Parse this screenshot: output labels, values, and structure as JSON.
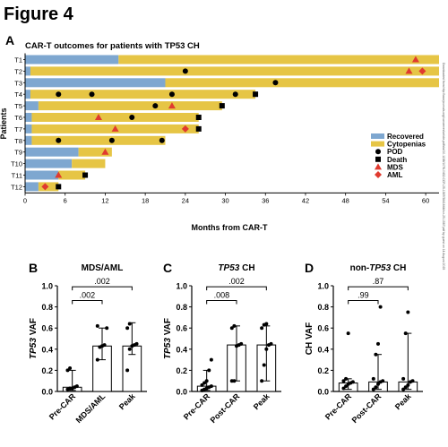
{
  "figure_title": "Figure 4",
  "side_note": "Downloaded from http://aacrjournals.org/cancerres/article-pdf/doi/10.1158/1078-0432.CCR-25-1587/3841644/ccr-25-1587.pdf by guest on 14 August 2025",
  "panel_a": {
    "letter": "A",
    "title": "CAR-T outcomes for patients with TP53 CH",
    "xlabel": "Months from CAR-T",
    "ylabel": "Patients",
    "legend": {
      "recovered": "Recovered",
      "cytopenias": "Cytopenias",
      "pod": "POD",
      "death": "Death",
      "mds": "MDS",
      "aml": "AML"
    },
    "colors": {
      "recovered": "#7ea7d0",
      "cytopenias": "#e6c545",
      "event": "#e03a2f",
      "dark": "#000000"
    }
  },
  "panel_b": {
    "letter": "B",
    "title": "MDS/AML",
    "title_italic": "",
    "ylabel_italic": "TP53",
    "ylabel_rest": " VAF"
  },
  "panel_c": {
    "letter": "C",
    "title": " CH",
    "title_italic": "TP53",
    "ylabel_italic": "TP53",
    "ylabel_rest": " VAF"
  },
  "panel_d": {
    "letter": "D",
    "title": " CH",
    "title_prefix": "non-",
    "title_italic": "TP53",
    "ylabel_italic": "",
    "ylabel_rest": "CH VAF"
  },
  "chart_data": [
    {
      "type": "bar",
      "orientation": "horizontal",
      "subtype": "swimmer",
      "title": "CAR-T outcomes for patients with TP53 CH",
      "xlabel": "Months from CAR-T",
      "ylabel": "Patients",
      "xlim": [
        0,
        62
      ],
      "xticks": [
        0,
        6,
        12,
        18,
        24,
        30,
        36,
        42,
        48,
        54,
        60
      ],
      "legend_position": "right",
      "patients": [
        {
          "name": "T1",
          "recovered": [
            0,
            14
          ],
          "cytopenias": [
            14,
            62
          ],
          "events": [
            {
              "type": "mds",
              "x": 58.5
            }
          ]
        },
        {
          "name": "T2",
          "recovered": [
            0,
            0.8
          ],
          "cytopenias": [
            0.8,
            62
          ],
          "events": [
            {
              "type": "pod",
              "x": 24
            },
            {
              "type": "mds",
              "x": 57.5
            },
            {
              "type": "aml",
              "x": 59.5
            }
          ]
        },
        {
          "name": "T3",
          "recovered": [
            0,
            21
          ],
          "cytopenias": [
            21,
            62
          ],
          "events": [
            {
              "type": "pod",
              "x": 37.5
            }
          ]
        },
        {
          "name": "T4",
          "recovered": [
            0,
            0.8
          ],
          "cytopenias": [
            0.8,
            34.5
          ],
          "events": [
            {
              "type": "pod",
              "x": 5
            },
            {
              "type": "pod",
              "x": 10
            },
            {
              "type": "pod",
              "x": 22
            },
            {
              "type": "pod",
              "x": 31.5
            },
            {
              "type": "death",
              "x": 34.5
            }
          ]
        },
        {
          "name": "T5",
          "recovered": [
            0,
            2
          ],
          "cytopenias": [
            2,
            29.5
          ],
          "events": [
            {
              "type": "pod",
              "x": 19.5
            },
            {
              "type": "mds",
              "x": 22
            },
            {
              "type": "death",
              "x": 29.5
            }
          ]
        },
        {
          "name": "T6",
          "recovered": [
            0,
            1
          ],
          "cytopenias": [
            1,
            26
          ],
          "events": [
            {
              "type": "mds",
              "x": 11
            },
            {
              "type": "pod",
              "x": 16
            },
            {
              "type": "death",
              "x": 26
            }
          ]
        },
        {
          "name": "T7",
          "recovered": [
            0,
            1
          ],
          "cytopenias": [
            1,
            26
          ],
          "events": [
            {
              "type": "mds",
              "x": 13.5
            },
            {
              "type": "aml",
              "x": 24
            },
            {
              "type": "death",
              "x": 26
            }
          ]
        },
        {
          "name": "T8",
          "recovered": [
            0,
            1
          ],
          "cytopenias": [
            1,
            21
          ],
          "events": [
            {
              "type": "pod",
              "x": 5
            },
            {
              "type": "pod",
              "x": 13
            },
            {
              "type": "pod",
              "x": 20.5
            }
          ]
        },
        {
          "name": "T9",
          "recovered": [
            0,
            8
          ],
          "cytopenias": [
            8,
            13
          ],
          "events": [
            {
              "type": "mds",
              "x": 12
            }
          ]
        },
        {
          "name": "T10",
          "recovered": [
            0,
            7
          ],
          "cytopenias": [
            7,
            12
          ],
          "events": []
        },
        {
          "name": "T11",
          "recovered": [
            0,
            5
          ],
          "cytopenias": [
            5,
            9
          ],
          "events": [
            {
              "type": "mds",
              "x": 5
            },
            {
              "type": "death",
              "x": 9
            }
          ]
        },
        {
          "name": "T12",
          "recovered": [
            0,
            2
          ],
          "cytopenias": [
            2,
            5
          ],
          "events": [
            {
              "type": "aml",
              "x": 3
            },
            {
              "type": "death",
              "x": 5
            }
          ]
        }
      ]
    },
    {
      "type": "bar",
      "subtype": "bar_with_points",
      "panel": "B",
      "categories": [
        "Pre-CAR",
        "MDS/AML",
        "Peak"
      ],
      "values": [
        0.04,
        0.43,
        0.43
      ],
      "error": [
        [
          0.01,
          0.2
        ],
        [
          0.3,
          0.6
        ],
        [
          0.35,
          0.65
        ]
      ],
      "points": [
        [
          0.02,
          0.03,
          0.03,
          0.04,
          0.05,
          0.2,
          0.22
        ],
        [
          0.3,
          0.42,
          0.43,
          0.44,
          0.6,
          0.62
        ],
        [
          0.2,
          0.4,
          0.43,
          0.44,
          0.45,
          0.6,
          0.64
        ]
      ],
      "ylim": [
        0,
        1.0
      ],
      "yticks": [
        0.0,
        0.2,
        0.4,
        0.6,
        0.8,
        1.0
      ],
      "brackets": [
        {
          "from": 0,
          "to": 1,
          "label": ".002"
        },
        {
          "from": 0,
          "to": 2,
          "label": ".002"
        }
      ]
    },
    {
      "type": "bar",
      "subtype": "bar_with_points",
      "panel": "C",
      "categories": [
        "Pre-CAR",
        "Post-CAR",
        "Peak"
      ],
      "values": [
        0.05,
        0.44,
        0.44
      ],
      "error": [
        [
          0.01,
          0.2
        ],
        [
          0.1,
          0.62
        ],
        [
          0.1,
          0.62
        ]
      ],
      "points": [
        [
          0.01,
          0.02,
          0.03,
          0.04,
          0.05,
          0.06,
          0.08,
          0.1,
          0.2,
          0.3
        ],
        [
          0.1,
          0.1,
          0.43,
          0.44,
          0.45,
          0.6,
          0.62
        ],
        [
          0.1,
          0.25,
          0.4,
          0.44,
          0.45,
          0.6,
          0.63,
          0.64
        ]
      ],
      "ylim": [
        0,
        1.0
      ],
      "yticks": [
        0.0,
        0.2,
        0.4,
        0.6,
        0.8,
        1.0
      ],
      "brackets": [
        {
          "from": 0,
          "to": 1,
          "label": ".008"
        },
        {
          "from": 0,
          "to": 2,
          "label": ".002"
        }
      ]
    },
    {
      "type": "bar",
      "subtype": "bar_with_points",
      "panel": "D",
      "categories": [
        "Pre-CAR",
        "Post-CAR",
        "Peak"
      ],
      "values": [
        0.08,
        0.09,
        0.09
      ],
      "error": [
        [
          0.02,
          0.12
        ],
        [
          0.02,
          0.35
        ],
        [
          0.02,
          0.55
        ]
      ],
      "points": [
        [
          0.03,
          0.05,
          0.07,
          0.08,
          0.09,
          0.1,
          0.12,
          0.55
        ],
        [
          0.02,
          0.04,
          0.07,
          0.09,
          0.1,
          0.12,
          0.35,
          0.45,
          0.8
        ],
        [
          0.02,
          0.04,
          0.06,
          0.09,
          0.1,
          0.12,
          0.55,
          0.75
        ]
      ],
      "ylim": [
        0,
        1.0
      ],
      "yticks": [
        0.0,
        0.2,
        0.4,
        0.6,
        0.8,
        1.0
      ],
      "brackets": [
        {
          "from": 0,
          "to": 1,
          "label": ".99"
        },
        {
          "from": 0,
          "to": 2,
          "label": ".87"
        }
      ]
    }
  ]
}
